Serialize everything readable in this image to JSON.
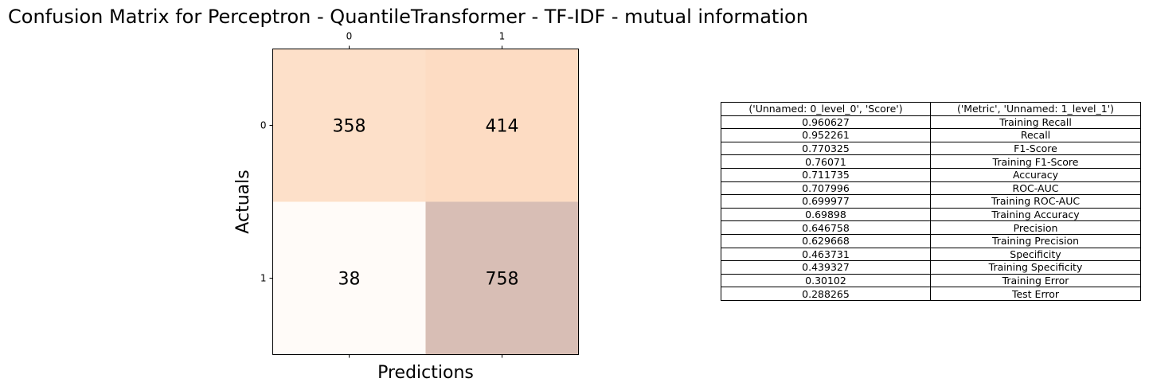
{
  "chart_data": {
    "type": "heatmap",
    "title": "Confusion Matrix for Perceptron - QuantileTransformer - TF-IDF - mutual information",
    "xlabel": "Predictions",
    "ylabel": "Actuals",
    "x_categories": [
      "0",
      "1"
    ],
    "y_categories": [
      "0",
      "1"
    ],
    "values": [
      [
        358,
        414
      ],
      [
        38,
        758
      ]
    ],
    "cell_colors": [
      [
        "#fde0c9",
        "#fddcc3"
      ],
      [
        "#fffbf8",
        "#d8beb5"
      ]
    ],
    "x_tick_position": "top-and-bottom",
    "grid": false
  },
  "metrics_table": {
    "columns": [
      "('Unnamed: 0_level_0', 'Score')",
      "('Metric', 'Unnamed: 1_level_1')"
    ],
    "rows": [
      [
        "0.960627",
        "Training Recall"
      ],
      [
        "0.952261",
        "Recall"
      ],
      [
        "0.770325",
        "F1-Score"
      ],
      [
        "0.76071",
        "Training F1-Score"
      ],
      [
        "0.711735",
        "Accuracy"
      ],
      [
        "0.707996",
        "ROC-AUC"
      ],
      [
        "0.699977",
        "Training ROC-AUC"
      ],
      [
        "0.69898",
        "Training Accuracy"
      ],
      [
        "0.646758",
        "Precision"
      ],
      [
        "0.629668",
        "Training Precision"
      ],
      [
        "0.463731",
        "Specificity"
      ],
      [
        "0.439327",
        "Training Specificity"
      ],
      [
        "0.30102",
        "Training Error"
      ],
      [
        "0.288265",
        "Test Error"
      ]
    ]
  }
}
